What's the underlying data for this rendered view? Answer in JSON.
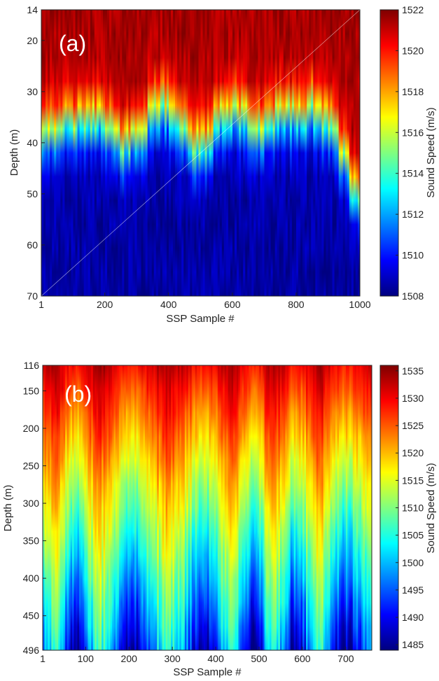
{
  "chart_data": [
    {
      "type": "heatmap",
      "panel_label": "(a)",
      "xlabel": "SSP Sample #",
      "ylabel": "Depth (m)",
      "xlim": [
        1,
        1000
      ],
      "ylim": [
        14,
        70
      ],
      "y_reversed": true,
      "x_ticks": [
        1,
        200,
        400,
        600,
        800,
        1000
      ],
      "y_ticks": [
        14,
        20,
        30,
        40,
        50,
        60,
        70
      ],
      "colorbar": {
        "label": "Sound Speed (m/s)",
        "range": [
          1508,
          1522
        ],
        "ticks": [
          1508,
          1510,
          1512,
          1514,
          1516,
          1518,
          1520,
          1522
        ],
        "colormap": "jet"
      },
      "approx_isotherm_1516_depth": {
        "sample": [
          1,
          60,
          120,
          180,
          220,
          260,
          300,
          350,
          400,
          450,
          500,
          550,
          600,
          650,
          700,
          750,
          800,
          850,
          900,
          950,
          1000
        ],
        "depth_m": [
          38,
          37,
          36,
          36,
          38,
          41,
          38,
          35,
          33,
          38,
          42,
          36,
          34,
          36,
          38,
          34,
          35,
          34,
          36,
          43,
          52
        ]
      }
    },
    {
      "type": "heatmap",
      "panel_label": "(b)",
      "xlabel": "SSP Sample #",
      "ylabel": "Depth (m)",
      "xlim": [
        1,
        760
      ],
      "ylim": [
        116,
        496
      ],
      "y_reversed": true,
      "x_ticks": [
        1,
        100,
        200,
        300,
        400,
        500,
        600,
        700
      ],
      "y_ticks": [
        116,
        150,
        200,
        250,
        300,
        350,
        400,
        450,
        496
      ],
      "colorbar": {
        "label": "Sound Speed (m/s)",
        "range": [
          1484,
          1536
        ],
        "ticks": [
          1485,
          1490,
          1495,
          1500,
          1505,
          1510,
          1515,
          1520,
          1525,
          1530,
          1535
        ],
        "colormap": "jet"
      }
    }
  ]
}
